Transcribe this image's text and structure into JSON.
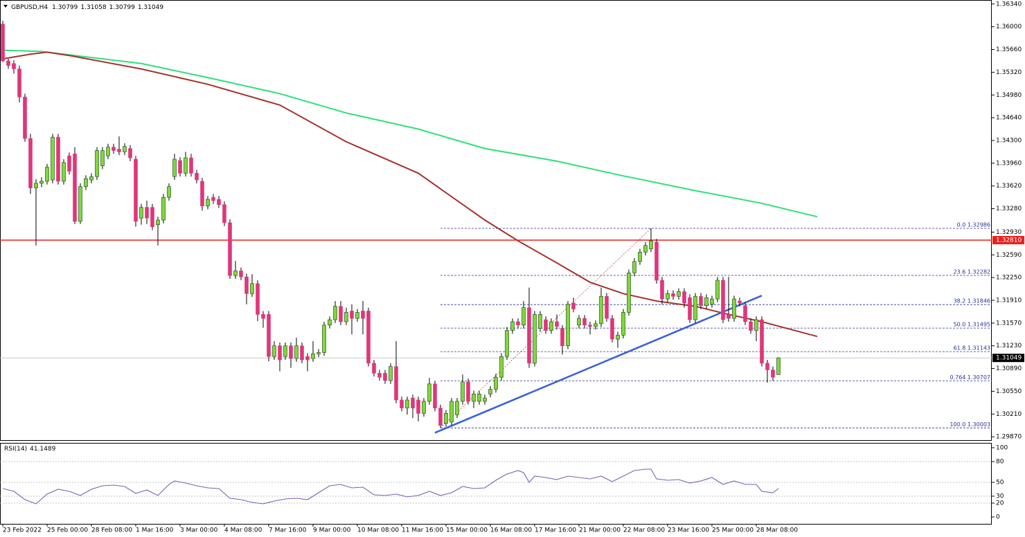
{
  "chart_data": {
    "type": "candlestick",
    "symbol": "GBPUSD,H4",
    "xlim": [
      -0.5,
      178.5
    ],
    "ylim": [
      1.2982,
      1.364
    ],
    "yticks": [
      {
        "value": 1.3634,
        "label": "1.36340"
      },
      {
        "value": 1.36,
        "label": "1.36000"
      },
      {
        "value": 1.3566,
        "label": "1.35660"
      },
      {
        "value": 1.3532,
        "label": "1.35320"
      },
      {
        "value": 1.3498,
        "label": "1.34980"
      },
      {
        "value": 1.3464,
        "label": "1.34640"
      },
      {
        "value": 1.343,
        "label": "1.34300"
      },
      {
        "value": 1.3396,
        "label": "1.33960"
      },
      {
        "value": 1.3362,
        "label": "1.33620"
      },
      {
        "value": 1.3328,
        "label": "1.33280"
      },
      {
        "value": 1.3293,
        "label": "1.32930"
      },
      {
        "value": 1.3259,
        "label": "1.32590"
      },
      {
        "value": 1.3225,
        "label": "1.32250"
      },
      {
        "value": 1.3191,
        "label": "1.31910"
      },
      {
        "value": 1.3157,
        "label": "1.31570"
      },
      {
        "value": 1.3123,
        "label": "1.31230"
      },
      {
        "value": 1.3089,
        "label": "1.30890"
      },
      {
        "value": 1.3055,
        "label": "1.30550"
      },
      {
        "value": 1.3021,
        "label": "1.30210"
      },
      {
        "value": 1.2987,
        "label": "1.29870"
      }
    ],
    "xticks": [
      {
        "value": 0,
        "label": "23 Feb 2022"
      },
      {
        "value": 8,
        "label": "25 Feb 00:00"
      },
      {
        "value": 16,
        "label": "28 Feb 08:00"
      },
      {
        "value": 24,
        "label": "1 Mar 16:00"
      },
      {
        "value": 32,
        "label": "3 Mar 00:00"
      },
      {
        "value": 40,
        "label": "4 Mar 08:00"
      },
      {
        "value": 48,
        "label": "7 Mar 16:00"
      },
      {
        "value": 56,
        "label": "9 Mar 00:00"
      },
      {
        "value": 64,
        "label": "10 Mar 08:00"
      },
      {
        "value": 72,
        "label": "11 Mar 16:00"
      },
      {
        "value": 80,
        "label": "15 Mar 00:00"
      },
      {
        "value": 88,
        "label": "16 Mar 08:00"
      },
      {
        "value": 96,
        "label": "17 Mar 16:00"
      },
      {
        "value": 104,
        "label": "21 Mar 00:00"
      },
      {
        "value": 112,
        "label": "22 Mar 08:00"
      },
      {
        "value": 120,
        "label": "23 Mar 16:00"
      },
      {
        "value": 128,
        "label": "25 Mar 00:00"
      },
      {
        "value": 136,
        "label": "28 Mar 08:00"
      }
    ],
    "up_color": "#7fd83c",
    "down_color": "#e0367a",
    "open": [
      1.3604,
      1.3549,
      1.3545,
      1.3537,
      1.3495,
      1.3433,
      1.3359,
      1.3366,
      1.3369,
      1.3371,
      1.3435,
      1.3369,
      1.3407,
      1.341,
      1.3309,
      1.3361,
      1.3371,
      1.3376,
      1.3392,
      1.3407,
      1.342,
      1.3417,
      1.3413,
      1.3418,
      1.3402,
      1.3314,
      1.333,
      1.333,
      1.3304,
      1.3311,
      1.3345,
      1.3376,
      1.34,
      1.3381,
      1.3404,
      1.3381,
      1.3369,
      1.3332,
      1.3345,
      1.3342,
      1.3334,
      1.3307,
      1.3228,
      1.3235,
      1.3226,
      1.3201,
      1.3216,
      1.317,
      1.317,
      1.3107,
      1.3123,
      1.3107,
      1.3123,
      1.3104,
      1.3123,
      1.3107,
      1.3104,
      1.3111,
      1.3113,
      1.3154,
      1.3162,
      1.3182,
      1.3159,
      1.3175,
      1.3164,
      1.3175,
      1.3175,
      1.3097,
      1.3082,
      1.3082,
      1.3071,
      1.3092,
      1.3042,
      1.303,
      1.3045,
      1.3042,
      1.3022,
      1.304,
      1.3066,
      1.303,
      1.3007,
      1.3009,
      1.302,
      1.304,
      1.3069,
      1.304,
      1.304,
      1.304,
      1.3051,
      1.3058,
      1.3076,
      1.3107,
      1.3146,
      1.3159,
      1.3154,
      1.318,
      1.3097,
      1.3149,
      1.3162,
      1.3146,
      1.3159,
      1.3149,
      1.3123,
      1.3187,
      1.3154,
      1.3164,
      1.3154,
      1.3152,
      1.3156,
      1.3197,
      1.3164,
      1.3133,
      1.3139,
      1.3173,
      1.3232,
      1.3249,
      1.3263,
      1.3268,
      1.3278,
      1.3221,
      1.3193,
      1.3201,
      1.3197,
      1.3204,
      1.3195,
      1.3162,
      1.3197,
      1.3183,
      1.3185,
      1.3193,
      1.3221,
      1.317,
      1.3164,
      1.319,
      1.3183,
      1.3159,
      1.3146,
      1.3162,
      1.3097,
      1.3087,
      1.30799
    ],
    "high": [
      1.3609,
      1.3552,
      1.355,
      1.3542,
      1.35,
      1.344,
      1.3372,
      1.3375,
      1.3395,
      1.344,
      1.344,
      1.3402,
      1.3412,
      1.342,
      1.3366,
      1.3378,
      1.3381,
      1.342,
      1.342,
      1.3425,
      1.3425,
      1.3436,
      1.3426,
      1.3423,
      1.3407,
      1.3335,
      1.334,
      1.3335,
      1.3316,
      1.335,
      1.3366,
      1.341,
      1.3405,
      1.3413,
      1.341,
      1.3386,
      1.3374,
      1.3347,
      1.335,
      1.3347,
      1.3339,
      1.3312,
      1.325,
      1.324,
      1.3231,
      1.323,
      1.3221,
      1.3175,
      1.3175,
      1.313,
      1.3128,
      1.3128,
      1.3128,
      1.3135,
      1.3128,
      1.3112,
      1.313,
      1.3118,
      1.3159,
      1.3167,
      1.319,
      1.319,
      1.318,
      1.3185,
      1.3178,
      1.319,
      1.318,
      1.3102,
      1.3087,
      1.3087,
      1.3097,
      1.313,
      1.3047,
      1.3047,
      1.305,
      1.3047,
      1.3045,
      1.3075,
      1.3071,
      1.3035,
      1.3027,
      1.3045,
      1.3045,
      1.308,
      1.3074,
      1.3056,
      1.3056,
      1.305,
      1.3063,
      1.3081,
      1.3112,
      1.3151,
      1.3164,
      1.3164,
      1.319,
      1.321,
      1.3175,
      1.3175,
      1.3167,
      1.3164,
      1.317,
      1.3154,
      1.319,
      1.3195,
      1.3169,
      1.3169,
      1.3159,
      1.3161,
      1.321,
      1.3202,
      1.3169,
      1.3144,
      1.3178,
      1.3237,
      1.3254,
      1.3268,
      1.3278,
      1.32986,
      1.3283,
      1.3226,
      1.3206,
      1.3206,
      1.3209,
      1.3209,
      1.32,
      1.3202,
      1.3202,
      1.32,
      1.3198,
      1.3226,
      1.3226,
      1.3226,
      1.3198,
      1.3195,
      1.3188,
      1.3164,
      1.3167,
      1.3167,
      1.3102,
      1.3092,
      1.31058
    ],
    "low": [
      1.3547,
      1.3537,
      1.353,
      1.3487,
      1.3428,
      1.335,
      1.3273,
      1.336,
      1.3364,
      1.3366,
      1.3364,
      1.3364,
      1.3379,
      1.3305,
      1.3305,
      1.3356,
      1.3366,
      1.3371,
      1.3387,
      1.3402,
      1.341,
      1.3408,
      1.3408,
      1.3399,
      1.3301,
      1.3304,
      1.3305,
      1.3296,
      1.3273,
      1.3306,
      1.334,
      1.3371,
      1.3376,
      1.3376,
      1.3376,
      1.3366,
      1.3325,
      1.3327,
      1.3335,
      1.3329,
      1.3302,
      1.3223,
      1.3223,
      1.3221,
      1.3185,
      1.3196,
      1.316,
      1.315,
      1.31,
      1.3102,
      1.3085,
      1.3102,
      1.309,
      1.3099,
      1.3097,
      1.3085,
      1.3099,
      1.3106,
      1.3108,
      1.3149,
      1.3157,
      1.3154,
      1.3154,
      1.314,
      1.3159,
      1.314,
      1.3092,
      1.3077,
      1.3071,
      1.3066,
      1.3066,
      1.3037,
      1.3025,
      1.302,
      1.3015,
      1.301,
      1.3017,
      1.3035,
      1.3025,
      1.30003,
      1.3002,
      1.3004,
      1.3015,
      1.3035,
      1.3035,
      1.303,
      1.3035,
      1.3035,
      1.3046,
      1.3053,
      1.3071,
      1.3102,
      1.3141,
      1.3149,
      1.3149,
      1.309,
      1.3092,
      1.3144,
      1.3141,
      1.3141,
      1.3147,
      1.311,
      1.3118,
      1.3173,
      1.3149,
      1.3149,
      1.314,
      1.3147,
      1.3151,
      1.3159,
      1.3128,
      1.312,
      1.3134,
      1.3168,
      1.3227,
      1.3244,
      1.3258,
      1.3263,
      1.3216,
      1.3185,
      1.3188,
      1.3192,
      1.3192,
      1.318,
      1.3157,
      1.3157,
      1.3178,
      1.3178,
      1.318,
      1.3188,
      1.3157,
      1.3159,
      1.3159,
      1.3182,
      1.3154,
      1.3141,
      1.313,
      1.3092,
      1.3068,
      1.3071,
      1.30799
    ],
    "close": [
      1.3549,
      1.3542,
      1.3537,
      1.3495,
      1.3433,
      1.3359,
      1.3366,
      1.3369,
      1.339,
      1.3435,
      1.3369,
      1.3397,
      1.3384,
      1.3309,
      1.3361,
      1.3373,
      1.3376,
      1.3415,
      1.3415,
      1.342,
      1.3415,
      1.3413,
      1.3421,
      1.3404,
      1.3309,
      1.333,
      1.3314,
      1.3301,
      1.3311,
      1.3345,
      1.3361,
      1.3402,
      1.3381,
      1.3404,
      1.3381,
      1.3371,
      1.3332,
      1.3342,
      1.334,
      1.3334,
      1.3307,
      1.3228,
      1.3235,
      1.3226,
      1.3201,
      1.3216,
      1.317,
      1.3164,
      1.3107,
      1.3123,
      1.3102,
      1.3123,
      1.3104,
      1.3123,
      1.3102,
      1.3102,
      1.3111,
      1.3113,
      1.3154,
      1.3162,
      1.3182,
      1.3159,
      1.3173,
      1.3164,
      1.3173,
      1.3164,
      1.3097,
      1.3082,
      1.3076,
      1.3071,
      1.3092,
      1.3042,
      1.303,
      1.3042,
      1.303,
      1.3022,
      1.304,
      1.3066,
      1.303,
      1.3004,
      1.3022,
      1.304,
      1.304,
      1.3069,
      1.304,
      1.3051,
      1.3051,
      1.3045,
      1.3058,
      1.3076,
      1.3107,
      1.3146,
      1.3159,
      1.3154,
      1.318,
      1.3097,
      1.317,
      1.317,
      1.3146,
      1.3159,
      1.3152,
      1.3123,
      1.3185,
      1.3178,
      1.3164,
      1.3154,
      1.3152,
      1.3156,
      1.3197,
      1.3164,
      1.3133,
      1.3139,
      1.3173,
      1.3232,
      1.3249,
      1.3263,
      1.3273,
      1.328,
      1.3221,
      1.3193,
      1.3201,
      1.3197,
      1.3204,
      1.3187,
      1.3162,
      1.3197,
      1.3183,
      1.3195,
      1.3193,
      1.3221,
      1.3162,
      1.3164,
      1.3193,
      1.3187,
      1.3159,
      1.3146,
      1.3162,
      1.3097,
      1.3087,
      1.3076,
      1.31049
    ],
    "moving_averages": [
      {
        "color": "#2ee07a",
        "x": [
          0,
          7,
          12,
          25,
          37,
          50,
          62,
          75,
          87,
          100,
          112,
          125,
          137,
          147
        ],
        "values": [
          1.3565,
          1.3563,
          1.3558,
          1.3545,
          1.3524,
          1.35,
          1.3471,
          1.3447,
          1.3418,
          1.3399,
          1.3377,
          1.3355,
          1.3336,
          1.3316
        ]
      },
      {
        "color": "#a5322c",
        "x": [
          0,
          5,
          8,
          12,
          25,
          37,
          50,
          62,
          75,
          87,
          93,
          100,
          106,
          112,
          118,
          125,
          131,
          137,
          147
        ],
        "values": [
          1.3552,
          1.3559,
          1.3562,
          1.3557,
          1.3537,
          1.3514,
          1.3483,
          1.3428,
          1.3381,
          1.3311,
          1.328,
          1.3247,
          1.3218,
          1.3201,
          1.319,
          1.3182,
          1.317,
          1.3159,
          1.3137
        ]
      }
    ],
    "hline": {
      "value": 1.3281,
      "label": "1.32810",
      "color": "#e8221e"
    },
    "trendline": {
      "x": [
        78,
        137
      ],
      "values": [
        1.2993,
        1.3198
      ],
      "color": "#3b62d8"
    },
    "fibonacci": {
      "x": [
        79,
        117
      ],
      "color": "#28339a",
      "levels": [
        {
          "value": 1.32986,
          "label": "0.0 1.32986"
        },
        {
          "value": 1.32282,
          "label": "23.6 1.32282"
        },
        {
          "value": 1.31846,
          "label": "38.2 1.31846"
        },
        {
          "value": 1.31495,
          "label": "50.0 1.31495"
        },
        {
          "value": 1.31143,
          "label": "61.8 1.31143"
        },
        {
          "value": 1.30707,
          "label": "0.764 1.30707"
        },
        {
          "value": 1.30003,
          "label": "100.0 1.30003"
        }
      ]
    },
    "rsi": {
      "title": "RSI(14)",
      "color": "#7d5fb0",
      "ylim": [
        0,
        100
      ],
      "yticks": [
        100,
        80,
        50,
        30,
        20,
        0
      ],
      "x": [
        0,
        2,
        4,
        6,
        8,
        10,
        12,
        14,
        16,
        18,
        20,
        22,
        24,
        26,
        28,
        30,
        31,
        33,
        35,
        37,
        39,
        41,
        43,
        45,
        47,
        49,
        51,
        53,
        55,
        57,
        59,
        61,
        63,
        65,
        67,
        69,
        71,
        73,
        75,
        77,
        79,
        81,
        83,
        85,
        87,
        89,
        91,
        93,
        94,
        95,
        96,
        98,
        100,
        102,
        104,
        106,
        108,
        110,
        112,
        114,
        116,
        117,
        118,
        120,
        122,
        124,
        126,
        128,
        130,
        132,
        134,
        136,
        137,
        139,
        140
      ],
      "values": [
        41,
        37,
        25,
        19,
        33,
        40,
        37,
        31,
        40,
        45,
        46,
        44,
        34,
        39,
        31,
        47,
        52,
        49,
        45,
        42,
        41,
        27,
        25,
        21,
        19,
        23,
        26,
        27,
        25,
        35,
        45,
        47,
        42,
        43,
        32,
        31,
        33,
        29,
        31,
        37,
        31,
        35,
        44,
        41,
        42,
        53,
        62,
        67,
        64,
        50,
        59,
        57,
        54,
        59,
        57,
        55,
        59,
        51,
        59,
        67,
        69,
        69,
        55,
        53,
        54,
        49,
        52,
        57,
        47,
        52,
        47,
        47,
        37,
        35,
        41.1489
      ]
    }
  }
}
